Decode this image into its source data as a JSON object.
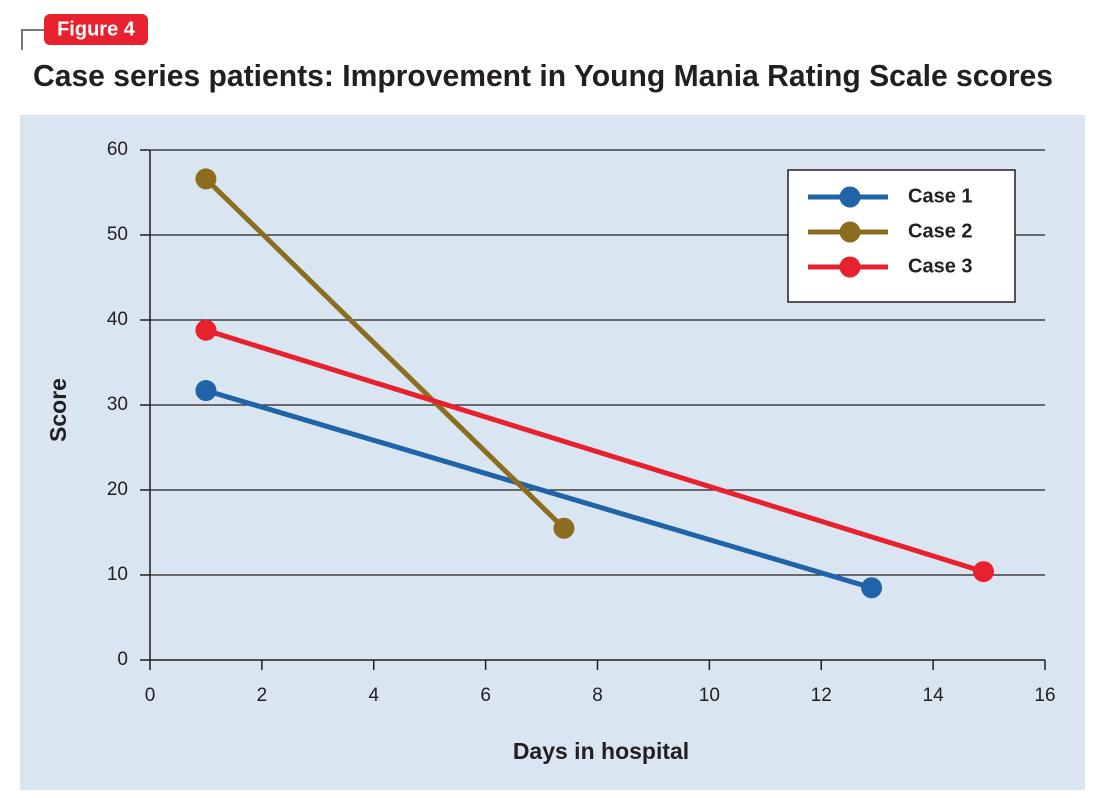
{
  "chart_data": {
    "type": "line",
    "figure_label": "Figure 4",
    "title": "Case series patients: Improvement in Young Mania Rating Scale scores",
    "x_label": "Days in hospital",
    "y_label": "Score",
    "series": [
      {
        "name": "Case 1",
        "color": "#1f63a8",
        "x": [
          1,
          12.9
        ],
        "values": [
          31.7,
          8.5
        ]
      },
      {
        "name": "Case 2",
        "color": "#8c6d1f",
        "x": [
          1,
          7.4
        ],
        "values": [
          56.6,
          15.5
        ]
      },
      {
        "name": "Case 3",
        "color": "#e8212e",
        "x": [
          1,
          14.9
        ],
        "values": [
          38.8,
          10.4
        ]
      }
    ],
    "xlim": [
      0,
      16
    ],
    "xticks": [
      0,
      2,
      4,
      6,
      8,
      10,
      12,
      14,
      16
    ],
    "ylim": [
      0,
      60
    ],
    "yticks": [
      0,
      10,
      20,
      30,
      40,
      50,
      60
    ],
    "grid": true,
    "legend": "upper right"
  }
}
